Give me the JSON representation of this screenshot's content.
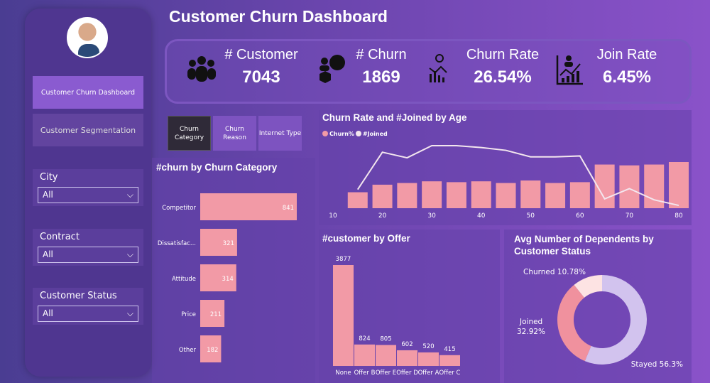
{
  "title": "Customer Churn Dashboard",
  "nav": [
    {
      "label": "Customer Churn Dashboard",
      "active": true
    },
    {
      "label": "Customer Segmentation",
      "active": false
    }
  ],
  "filters": [
    {
      "label": "City",
      "value": "All"
    },
    {
      "label": "Contract",
      "value": "All"
    },
    {
      "label": "Customer Status",
      "value": "All"
    }
  ],
  "kpis": [
    {
      "label": "# Customer",
      "value": "7043",
      "icon": "people-icon"
    },
    {
      "label": "# Churn",
      "value": "1869",
      "icon": "churn-icon"
    },
    {
      "label": "Churn Rate",
      "value": "26.54%",
      "icon": "churn-rate-icon"
    },
    {
      "label": "Join Rate",
      "value": "6.45%",
      "icon": "join-rate-icon"
    }
  ],
  "tabs": [
    {
      "label": "Churn Category",
      "active": true
    },
    {
      "label": "Churn Reason",
      "active": false
    },
    {
      "label": "Internet Type",
      "active": false
    }
  ],
  "colors": {
    "bar": "#f29aa6",
    "line": "#f3e6ee",
    "donut_stayed": "#d2c3ee",
    "donut_joined": "#f0919e",
    "donut_churned": "#fde3e3"
  },
  "chart_data": [
    {
      "type": "bar",
      "title": "#churn by Churn Category",
      "orientation": "horizontal",
      "categories": [
        "Competitor",
        "Dissatisfac...",
        "Attitude",
        "Price",
        "Other"
      ],
      "values": [
        841,
        321,
        314,
        211,
        182
      ]
    },
    {
      "type": "bar+line",
      "title": "Churn Rate and #Joined by Age",
      "legend": [
        "Churn%",
        "#Joined"
      ],
      "legend_position": "top-left",
      "x": [
        15,
        20,
        25,
        30,
        35,
        40,
        45,
        50,
        55,
        60,
        65,
        70,
        75,
        80
      ],
      "xticks": [
        10,
        20,
        30,
        40,
        50,
        60,
        70,
        80
      ],
      "series": [
        {
          "name": "Churn%",
          "type": "bar",
          "values": [
            19,
            28,
            30,
            32,
            31,
            32,
            30,
            33,
            30,
            31,
            52,
            51,
            52,
            55
          ]
        },
        {
          "name": "#Joined",
          "type": "line",
          "values": [
            20,
            60,
            54,
            67,
            67,
            65,
            62,
            55,
            55,
            56,
            10,
            21,
            9,
            3
          ]
        }
      ]
    },
    {
      "type": "bar",
      "title": "#customer by Offer",
      "categories": [
        "None",
        "Offer B",
        "Offer E",
        "Offer D",
        "Offer A",
        "Offer C"
      ],
      "values": [
        3877,
        824,
        805,
        602,
        520,
        415
      ]
    },
    {
      "type": "pie",
      "title": "Avg Number of Dependents by Customer Status",
      "donut": true,
      "slices": [
        {
          "label": "Stayed 56.3%",
          "value": 56.3
        },
        {
          "label": "Joined 32.92%",
          "value": 32.92
        },
        {
          "label": "Churned 10.78%",
          "value": 10.78
        }
      ]
    }
  ]
}
